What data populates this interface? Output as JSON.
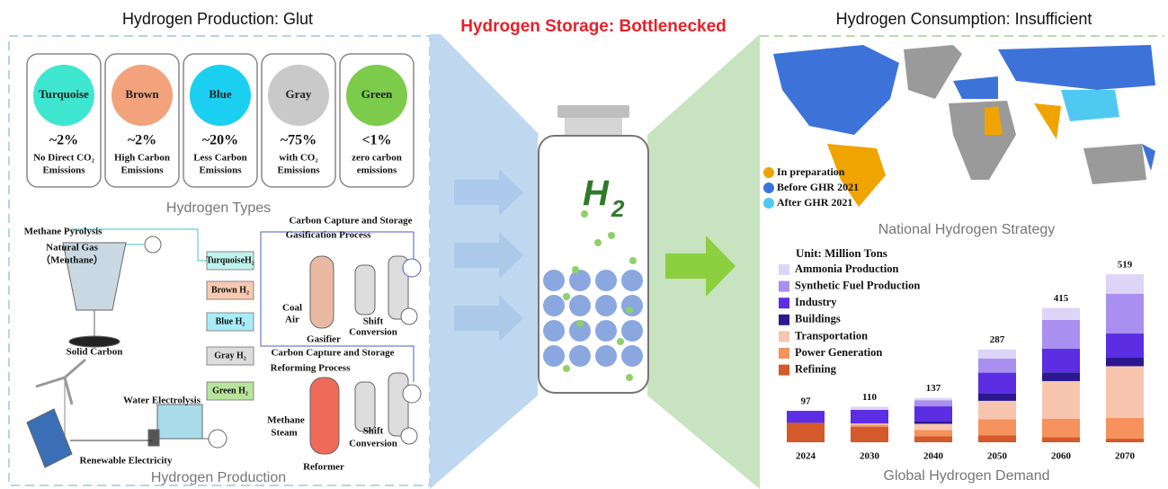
{
  "titles": {
    "production": "Hydrogen Production: Glut",
    "storage": "Hydrogen Storage: Bottlenecked",
    "consumption": "Hydrogen Consumption: Insufficient"
  },
  "hydrogen_types": [
    {
      "name": "Turquoise",
      "share": "~2%",
      "description": [
        "No Direct CO₂",
        "Emissions"
      ],
      "color": "#3fe6cf"
    },
    {
      "name": "Brown",
      "share": "~2%",
      "description": [
        "High Carbon",
        "Emissions"
      ],
      "color": "#f2a37c"
    },
    {
      "name": "Blue",
      "share": "~20%",
      "description": [
        "Less Carbon",
        "Emissions"
      ],
      "color": "#1bcff0"
    },
    {
      "name": "Gray",
      "share": "~75%",
      "description": [
        "with CO₂",
        "Emissions"
      ],
      "color": "#c9c9c9"
    },
    {
      "name": "Green",
      "share": "<1%",
      "description": [
        "zero carbon",
        "emissions"
      ],
      "color": "#7ccb4b"
    }
  ],
  "captions": {
    "types": "Hydrogen Types",
    "production": "Hydrogen Production",
    "strategy": "National Hydrogen Strategy",
    "demand": "Global Hydrogen Demand"
  },
  "production_labels": [
    "Methane Pyrolysis",
    "Natural Gas",
    "（Menthane）",
    "Solid Carbon",
    "Carbon Capture and Storage",
    "Gasification Process",
    "Coal",
    "Air",
    "Gasifier",
    "Shift",
    "Conversion",
    "Carbon Capture and Storage",
    "Reforming Process",
    "Methane",
    "Steam",
    "Reformer",
    "Shift",
    "Conversion",
    "Water Electrolysis",
    "Renewable Electricity"
  ],
  "production_boxes": [
    {
      "label": "TurquoiseH₂",
      "color": "#bff3ee"
    },
    {
      "label": "Brown H₂",
      "color": "#f7c9b0"
    },
    {
      "label": "Blue H₂",
      "color": "#a8ecf8"
    },
    {
      "label": "Gray H₂",
      "color": "#dcdcdc"
    },
    {
      "label": "Green H₂",
      "color": "#b8e49c"
    }
  ],
  "tank": {
    "symbol": "H",
    "subscript": "2"
  },
  "map_legend": [
    {
      "label": "In preparation",
      "color": "#f0a400"
    },
    {
      "label": "Before GHR  2021",
      "color": "#3d72d9"
    },
    {
      "label": "After GHR 2021",
      "color": "#4fc9f2"
    }
  ],
  "chart_data": {
    "type": "bar",
    "stacked": true,
    "unit_label": "Unit: Million Tons",
    "categories": [
      "2024",
      "2030",
      "2040",
      "2050",
      "2060",
      "2070"
    ],
    "totals": [
      97,
      110,
      137,
      287,
      415,
      519
    ],
    "series": [
      {
        "name": "Ammonia Production",
        "color": "#ddd5f8",
        "values": [
          0,
          10,
          7,
          28,
          37,
          60
        ]
      },
      {
        "name": "Synthetic Fuel Production",
        "color": "#a98ff0",
        "values": [
          0,
          0,
          19,
          44,
          89,
          123
        ]
      },
      {
        "name": "Industry",
        "color": "#5b2de3",
        "values": [
          37,
          42,
          46,
          63,
          73,
          73
        ]
      },
      {
        "name": "Buildings",
        "color": "#2b1890",
        "values": [
          0,
          0,
          8,
          24,
          27,
          28
        ]
      },
      {
        "name": "Transportation",
        "color": "#f8c6ae",
        "values": [
          0,
          4,
          19,
          57,
          116,
          160
        ]
      },
      {
        "name": "Power Generation",
        "color": "#f6925d",
        "values": [
          0,
          6,
          19,
          50,
          57,
          64
        ]
      },
      {
        "name": "Refining",
        "color": "#d4592b",
        "values": [
          60,
          48,
          19,
          21,
          16,
          11
        ]
      }
    ]
  }
}
